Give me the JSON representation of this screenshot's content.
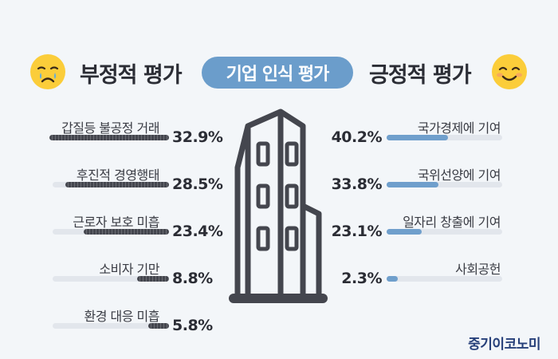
{
  "header": {
    "negative_title": "부정적 평가",
    "center_title": "기업 인식 평가",
    "positive_title": "긍정적 평가"
  },
  "icons": {
    "negative": "crying-face-icon",
    "positive": "smiling-face-icon",
    "center": "office-building-icon"
  },
  "colors": {
    "pill": "#6b9dcb",
    "negative_bar": "#4a4c54",
    "positive_bar": "#6f9fcc",
    "track": "#e2e6ec",
    "brand": "#27407a"
  },
  "chart_data": [
    {
      "type": "bar",
      "title": "부정적 평가",
      "categories": [
        "갑질등 불공정 거래",
        "후진적 경영행태",
        "근로자 보호 미흡",
        "소비자 기만",
        "환경 대응 미흡"
      ],
      "values": [
        32.9,
        28.5,
        23.4,
        8.8,
        5.8
      ],
      "value_labels": [
        "32.9%",
        "28.5%",
        "23.4%",
        "8.8%",
        "5.8%"
      ],
      "unit": "%"
    },
    {
      "type": "bar",
      "title": "긍정적 평가",
      "categories": [
        "국가경제에 기여",
        "국위선양에 기여",
        "일자리 창출에 기여",
        "사회공헌"
      ],
      "values": [
        40.2,
        33.8,
        23.1,
        2.3
      ],
      "value_labels": [
        "40.2%",
        "33.8%",
        "23.1%",
        "2.3%"
      ],
      "unit": "%"
    }
  ],
  "brand": "중기이코노미"
}
